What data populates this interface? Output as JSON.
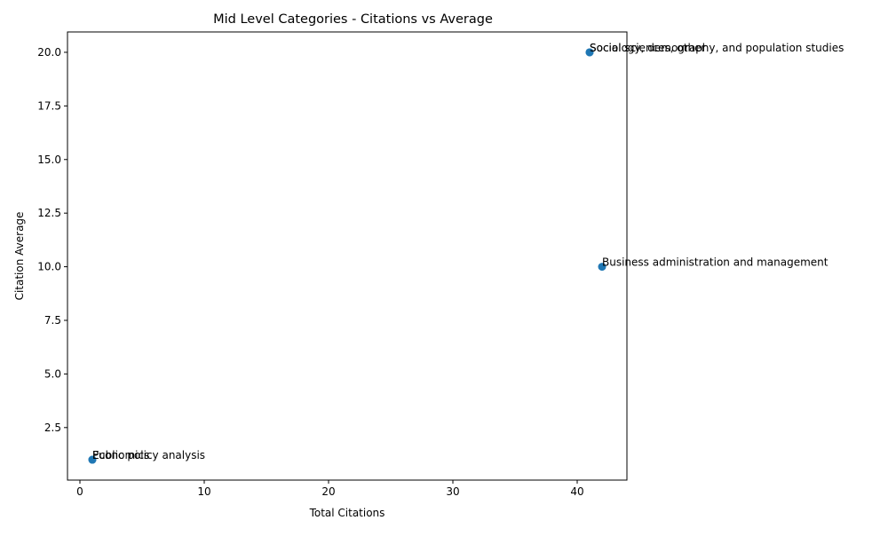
{
  "chart_data": {
    "type": "scatter",
    "title": "Mid Level Categories - Citations vs Average",
    "xlabel": "Total Citations",
    "ylabel": "Citation Average",
    "xlim": [
      -1,
      44
    ],
    "ylim": [
      0.05,
      20.95
    ],
    "xticks": [
      0,
      10,
      20,
      30,
      40
    ],
    "yticks": [
      2.5,
      5.0,
      7.5,
      10.0,
      12.5,
      15.0,
      17.5,
      20.0
    ],
    "xtick_labels": [
      "0",
      "10",
      "20",
      "30",
      "40"
    ],
    "ytick_labels": [
      "2.5",
      "5.0",
      "7.5",
      "10.0",
      "12.5",
      "15.0",
      "17.5",
      "20.0"
    ],
    "grid": false,
    "marker_color": "#1f77b4",
    "points": [
      {
        "label": "Sociology, demography, and population studies",
        "x": 41,
        "y": 20
      },
      {
        "label": "Social sciences, other",
        "x": 41,
        "y": 20
      },
      {
        "label": "Business administration and management",
        "x": 42,
        "y": 10
      },
      {
        "label": "Economics",
        "x": 1,
        "y": 1
      },
      {
        "label": "Public policy analysis",
        "x": 1,
        "y": 1
      }
    ]
  }
}
